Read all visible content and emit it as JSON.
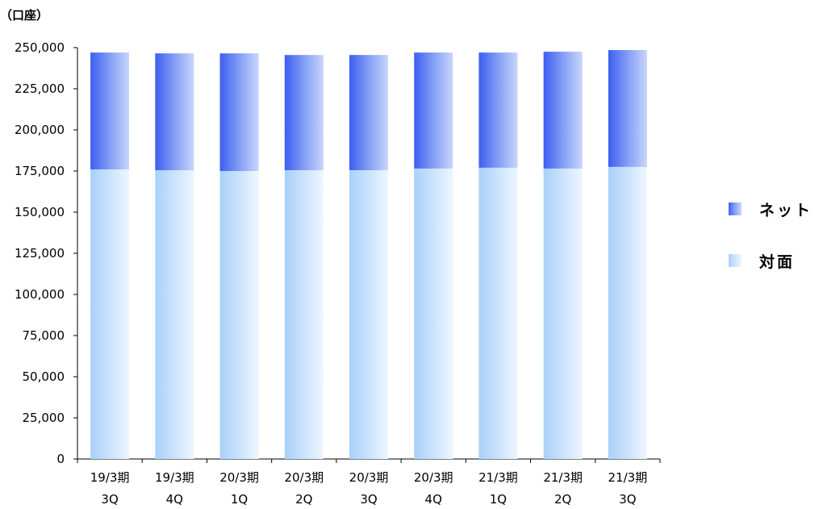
{
  "chart_data": {
    "type": "bar",
    "stacked": true,
    "unit_label": "（口座）",
    "categories": [
      [
        "19/3期",
        "3Q"
      ],
      [
        "19/3期",
        "4Q"
      ],
      [
        "20/3期",
        "1Q"
      ],
      [
        "20/3期",
        "2Q"
      ],
      [
        "20/3期",
        "3Q"
      ],
      [
        "20/3期",
        "4Q"
      ],
      [
        "21/3期",
        "1Q"
      ],
      [
        "21/3期",
        "2Q"
      ],
      [
        "21/3期",
        "3Q"
      ]
    ],
    "series": [
      {
        "name": "対面",
        "color": "#bcdcfb",
        "values": [
          176000,
          175500,
          175000,
          175500,
          175500,
          176500,
          177000,
          176500,
          177500
        ]
      },
      {
        "name": "ネット",
        "color": "#4a6ef0",
        "values": [
          71000,
          71000,
          71500,
          70000,
          70000,
          70500,
          70000,
          71000,
          71000
        ]
      }
    ],
    "ylim": [
      0,
      250000
    ],
    "yticks": [
      0,
      25000,
      50000,
      75000,
      100000,
      125000,
      150000,
      175000,
      200000,
      225000,
      250000
    ],
    "ytick_labels": [
      "0",
      "25,000",
      "50,000",
      "75,000",
      "100,000",
      "125,000",
      "150,000",
      "175,000",
      "200,000",
      "225,000",
      "250,000"
    ],
    "legend": [
      {
        "name": "ネット",
        "color": "#4a6ef0"
      },
      {
        "name": "対面",
        "color": "#bcdcfb"
      }
    ],
    "legend_position": "right",
    "grid": false
  }
}
